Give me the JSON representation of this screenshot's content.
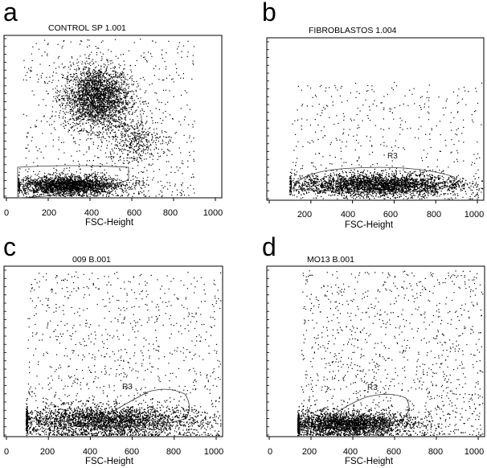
{
  "chart_data": [
    {
      "type": "scatter",
      "panel": "a",
      "title": "CONTROL SP 1.001",
      "xlabel": "FSC-Height",
      "ylabel": "",
      "xlim": [
        0,
        1023
      ],
      "xticks": [
        "0",
        "200",
        "400",
        "600",
        "800",
        "1000"
      ],
      "gate": {
        "label": "R1",
        "x": [
          80,
          560
        ],
        "y_fraction": [
          0.0,
          0.14
        ]
      },
      "series": [
        {
          "cluster": "upper-dense",
          "center_x": 430,
          "center_y_fraction": 0.63,
          "spread_x": 80,
          "spread_y_fraction": 0.1,
          "points": 2600
        },
        {
          "cluster": "lower-gated",
          "center_x": 300,
          "center_y_fraction": 0.07,
          "spread_x": 120,
          "spread_y_fraction": 0.03,
          "points": 2600
        },
        {
          "cluster": "side",
          "center_x": 600,
          "center_y_fraction": 0.36,
          "spread_x": 70,
          "spread_y_fraction": 0.08,
          "points": 450
        },
        {
          "cluster": "diffuse",
          "x_range": [
            80,
            900
          ],
          "y_fraction_range": [
            0.0,
            1.0
          ],
          "points": 650
        }
      ]
    },
    {
      "type": "scatter",
      "panel": "b",
      "title": "FIBROBLASTOS 1.004",
      "xlabel": "FSC-Height",
      "ylabel": "",
      "xlim": [
        0,
        1023
      ],
      "xticks": [
        "200",
        "400",
        "600",
        "800",
        "1000"
      ],
      "gate": {
        "label": "R3",
        "x": [
          110,
          900
        ],
        "y_fraction": [
          0.02,
          0.18
        ]
      },
      "series": [
        {
          "cluster": "band",
          "center_x": 520,
          "center_y_fraction": 0.09,
          "spread_x": 200,
          "spread_y_fraction": 0.035,
          "points": 4500
        },
        {
          "cluster": "diffuse",
          "x_range": [
            110,
            1020
          ],
          "y_fraction_range": [
            0.0,
            0.75
          ],
          "points": 500
        }
      ]
    },
    {
      "type": "scatter",
      "panel": "c",
      "title": "009 B.001",
      "xlabel": "FSC-Height",
      "ylabel": "",
      "xlim": [
        0,
        1023
      ],
      "xticks": [
        "0",
        "200",
        "400",
        "600",
        "800",
        "1000"
      ],
      "gate": {
        "label": "R3",
        "x": [
          380,
          860
        ],
        "y_fraction": [
          0.02,
          0.26
        ]
      },
      "series": [
        {
          "cluster": "band",
          "center_x": 460,
          "center_y_fraction": 0.09,
          "spread_x": 230,
          "spread_y_fraction": 0.045,
          "points": 4500
        },
        {
          "cluster": "diffuse",
          "x_range": [
            100,
            1020
          ],
          "y_fraction_range": [
            0.0,
            1.0
          ],
          "points": 1000
        }
      ]
    },
    {
      "type": "scatter",
      "panel": "d",
      "title": "MO13 B.001",
      "xlabel": "FSC-Height",
      "ylabel": "",
      "xlim": [
        0,
        1023
      ],
      "xticks": [
        "0",
        "200",
        "400",
        "600",
        "800",
        "1000"
      ],
      "gate": {
        "label": "R3",
        "x": [
          250,
          650
        ],
        "y_fraction": [
          0.03,
          0.17
        ]
      },
      "series": [
        {
          "cluster": "band",
          "center_x": 360,
          "center_y_fraction": 0.07,
          "spread_x": 160,
          "spread_y_fraction": 0.035,
          "points": 4000
        },
        {
          "cluster": "diffuse",
          "x_range": [
            150,
            1020
          ],
          "y_fraction_range": [
            0.0,
            1.0
          ],
          "points": 1200
        }
      ]
    }
  ],
  "panels": [
    {
      "letter": "a",
      "title": "CONTROL SP 1.001",
      "xlabel": "FSC-Height",
      "gate_label": "R1",
      "ticks": [
        "0",
        "200",
        "400",
        "600",
        "800",
        "1000"
      ]
    },
    {
      "letter": "b",
      "title": "FIBROBLASTOS 1.004",
      "xlabel": "FSC-Height",
      "gate_label": "R3",
      "ticks": [
        "200",
        "400",
        "600",
        "800",
        "1000"
      ]
    },
    {
      "letter": "c",
      "title": "009 B.001",
      "xlabel": "FSC-Height",
      "gate_label": "R3",
      "ticks": [
        "0",
        "200",
        "400",
        "600",
        "800",
        "1000"
      ]
    },
    {
      "letter": "d",
      "title": "MO13 B.001",
      "xlabel": "FSC-Height",
      "gate_label": "R3",
      "ticks": [
        "0",
        "200",
        "400",
        "600",
        "800",
        "1000"
      ]
    }
  ]
}
